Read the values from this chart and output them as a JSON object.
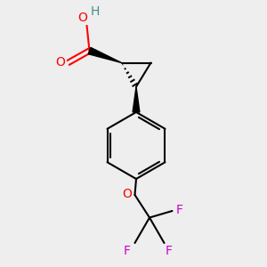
{
  "bg_color": "#eeeeee",
  "atom_colors": {
    "C": "#000000",
    "H": "#4a8a8a",
    "O": "#ff0000",
    "F": "#cc00cc"
  },
  "bond_color": "#000000",
  "line_width": 1.5,
  "figsize": [
    3.0,
    3.0
  ],
  "dpi": 100,
  "scale": 1.0
}
